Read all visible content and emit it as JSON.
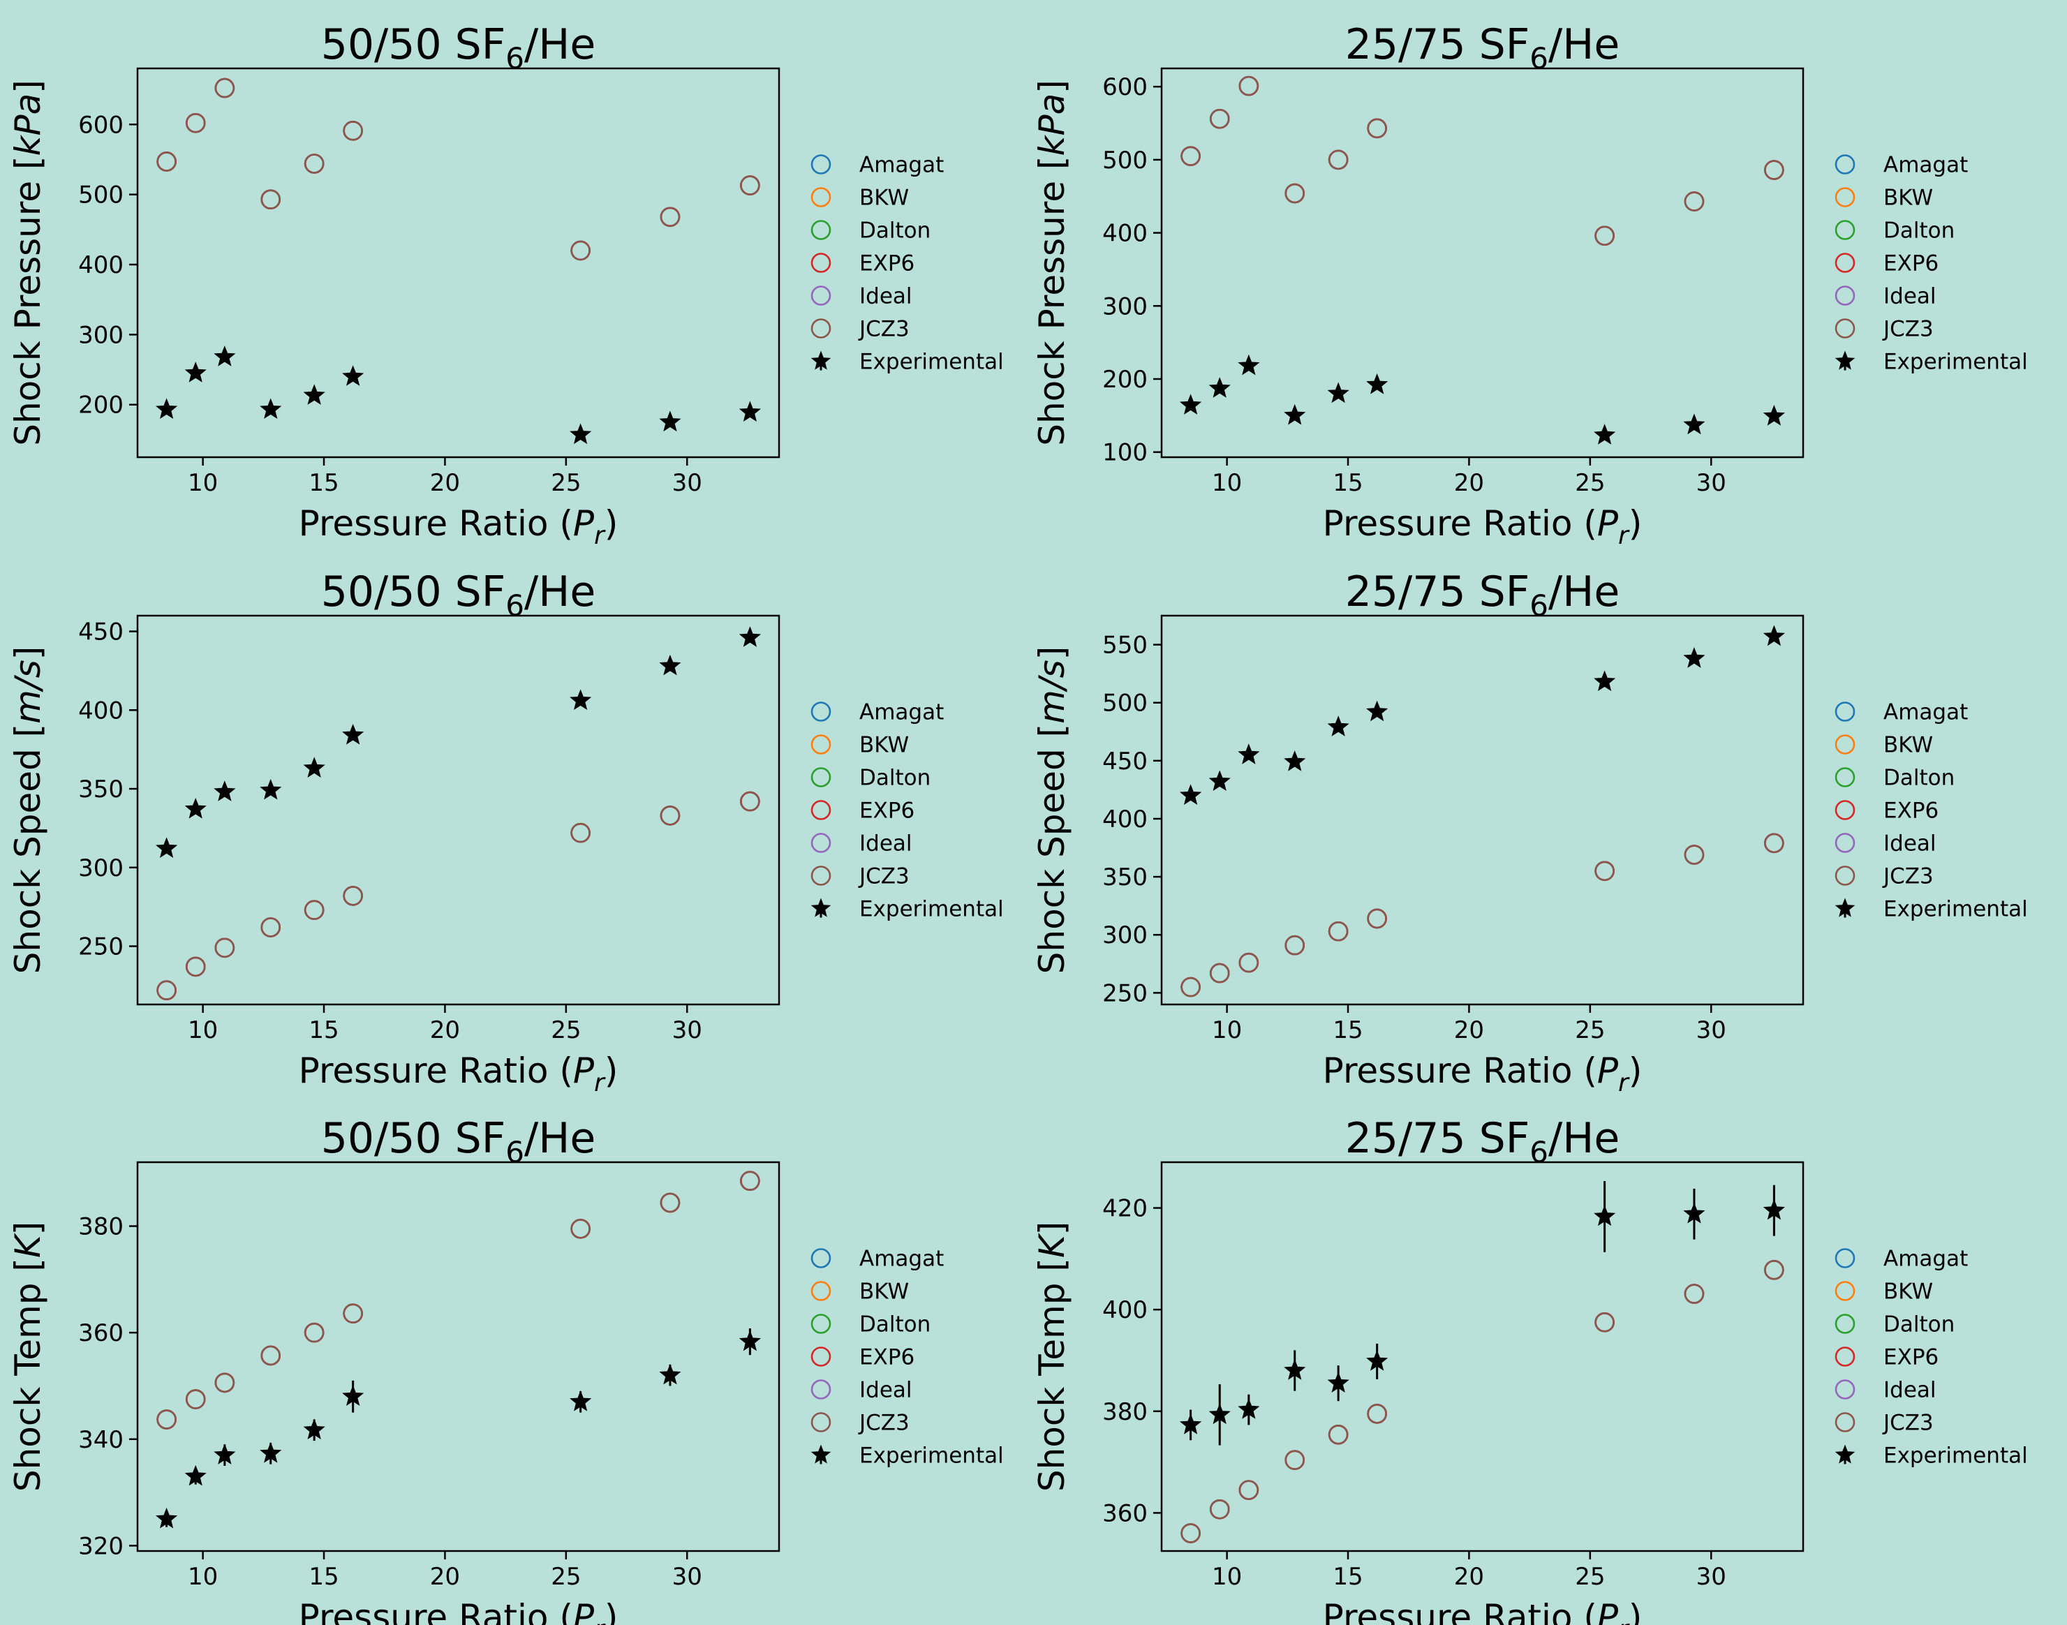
{
  "figure": {
    "background": "#b9e1d9"
  },
  "legend_colors": {
    "Amagat": "#1f77b4",
    "BKW": "#ff7f0e",
    "Dalton": "#2ca02c",
    "EXP6": "#d62728",
    "Ideal": "#9467bd",
    "JCZ3": "#8c564b",
    "Experimental": "#000000"
  },
  "chart_data": [
    {
      "type": "scatter",
      "title": "50/50 SF6/He",
      "title_main": "50/50 SF",
      "title_sub": "6",
      "title_tail": "/He",
      "xlabel": "Pressure Ratio (Pr)",
      "xlabel_main": "Pressure Ratio (",
      "xlabel_var": "P",
      "xlabel_sub": "r",
      "xlabel_tail": ")",
      "ylabel": "Shock Pressure [kPa]",
      "ylabel_main": "Shock Pressure [",
      "ylabel_unit": "kPa",
      "ylabel_tail": "]",
      "xlim": [
        7.3,
        33.8
      ],
      "ylim": [
        125,
        680
      ],
      "xticks": [
        10,
        15,
        20,
        25,
        30
      ],
      "yticks": [
        200,
        300,
        400,
        500,
        600
      ],
      "legend": [
        "Amagat",
        "BKW",
        "Dalton",
        "EXP6",
        "Ideal",
        "JCZ3",
        "Experimental"
      ],
      "legend_position": "outside-right",
      "x": [
        8.5,
        9.7,
        10.9,
        12.8,
        14.6,
        16.2,
        25.6,
        29.3,
        32.6
      ],
      "series": [
        {
          "name": "Amagat",
          "values": [
            547,
            602,
            652,
            493,
            544,
            591,
            420,
            468,
            513
          ]
        },
        {
          "name": "BKW",
          "values": [
            547,
            602,
            652,
            493,
            544,
            591,
            420,
            468,
            513
          ]
        },
        {
          "name": "Dalton",
          "values": [
            547,
            602,
            652,
            493,
            544,
            591,
            420,
            468,
            513
          ]
        },
        {
          "name": "EXP6",
          "values": [
            547,
            602,
            652,
            493,
            544,
            591,
            420,
            468,
            513
          ]
        },
        {
          "name": "Ideal",
          "values": [
            547,
            602,
            652,
            493,
            544,
            591,
            420,
            468,
            513
          ]
        },
        {
          "name": "JCZ3",
          "values": [
            547,
            602,
            652,
            493,
            544,
            591,
            420,
            468,
            513
          ]
        },
        {
          "name": "Experimental",
          "values": [
            193,
            245,
            268,
            193,
            213,
            240,
            157,
            175,
            189
          ],
          "err": [
            0,
            0,
            0,
            0,
            0,
            0,
            0,
            0,
            0
          ]
        }
      ]
    },
    {
      "type": "scatter",
      "title": "25/75 SF6/He",
      "title_main": "25/75 SF",
      "title_sub": "6",
      "title_tail": "/He",
      "xlabel": "Pressure Ratio (Pr)",
      "xlabel_main": "Pressure Ratio (",
      "xlabel_var": "P",
      "xlabel_sub": "r",
      "xlabel_tail": ")",
      "ylabel": "Shock Pressure [kPa]",
      "ylabel_main": "Shock Pressure [",
      "ylabel_unit": "kPa",
      "ylabel_tail": "]",
      "xlim": [
        7.3,
        33.8
      ],
      "ylim": [
        93,
        625
      ],
      "xticks": [
        10,
        15,
        20,
        25,
        30
      ],
      "yticks": [
        100,
        200,
        300,
        400,
        500,
        600
      ],
      "legend": [
        "Amagat",
        "BKW",
        "Dalton",
        "EXP6",
        "Ideal",
        "JCZ3",
        "Experimental"
      ],
      "legend_position": "outside-right",
      "x": [
        8.5,
        9.7,
        10.9,
        12.8,
        14.6,
        16.2,
        25.6,
        29.3,
        32.6
      ],
      "series": [
        {
          "name": "Amagat",
          "values": [
            505,
            556,
            601,
            454,
            500,
            543,
            396,
            443,
            486
          ]
        },
        {
          "name": "BKW",
          "values": [
            505,
            556,
            601,
            454,
            500,
            543,
            396,
            443,
            486
          ]
        },
        {
          "name": "Dalton",
          "values": [
            505,
            556,
            601,
            454,
            500,
            543,
            396,
            443,
            486
          ]
        },
        {
          "name": "EXP6",
          "values": [
            505,
            556,
            601,
            454,
            500,
            543,
            396,
            443,
            486
          ]
        },
        {
          "name": "Ideal",
          "values": [
            505,
            556,
            601,
            454,
            500,
            543,
            396,
            443,
            486
          ]
        },
        {
          "name": "JCZ3",
          "values": [
            505,
            556,
            601,
            454,
            500,
            543,
            396,
            443,
            486
          ]
        },
        {
          "name": "Experimental",
          "values": [
            164,
            187,
            218,
            150,
            180,
            192,
            123,
            137,
            149
          ],
          "err": [
            0,
            0,
            0,
            0,
            0,
            0,
            0,
            0,
            0
          ]
        }
      ]
    },
    {
      "type": "scatter",
      "title": "50/50 SF6/He",
      "title_main": "50/50 SF",
      "title_sub": "6",
      "title_tail": "/He",
      "xlabel": "Pressure Ratio (Pr)",
      "xlabel_main": "Pressure Ratio (",
      "xlabel_var": "P",
      "xlabel_sub": "r",
      "xlabel_tail": ")",
      "ylabel": "Shock Speed [m/s]",
      "ylabel_main": "Shock Speed [",
      "ylabel_unit": "m/s",
      "ylabel_tail": "]",
      "xlim": [
        7.3,
        33.8
      ],
      "ylim": [
        213,
        460
      ],
      "xticks": [
        10,
        15,
        20,
        25,
        30
      ],
      "yticks": [
        250,
        300,
        350,
        400,
        450
      ],
      "legend": [
        "Amagat",
        "BKW",
        "Dalton",
        "EXP6",
        "Ideal",
        "JCZ3",
        "Experimental"
      ],
      "legend_position": "outside-right",
      "x": [
        8.5,
        9.7,
        10.9,
        12.8,
        14.6,
        16.2,
        25.6,
        29.3,
        32.6
      ],
      "series": [
        {
          "name": "Amagat",
          "values": [
            222,
            237,
            249,
            262,
            273,
            282,
            322,
            333,
            342
          ]
        },
        {
          "name": "BKW",
          "values": [
            222,
            237,
            249,
            262,
            273,
            282,
            322,
            333,
            342
          ]
        },
        {
          "name": "Dalton",
          "values": [
            222,
            237,
            249,
            262,
            273,
            282,
            322,
            333,
            342
          ]
        },
        {
          "name": "EXP6",
          "values": [
            222,
            237,
            249,
            262,
            273,
            282,
            322,
            333,
            342
          ]
        },
        {
          "name": "Ideal",
          "values": [
            222,
            237,
            249,
            262,
            273,
            282,
            322,
            333,
            342
          ]
        },
        {
          "name": "JCZ3",
          "values": [
            222,
            237,
            249,
            262,
            273,
            282,
            322,
            333,
            342
          ]
        },
        {
          "name": "Experimental",
          "values": [
            312,
            337,
            348,
            349,
            363,
            384,
            406,
            428,
            446
          ],
          "err": [
            0,
            0,
            0,
            0,
            0,
            0,
            0,
            0,
            0
          ]
        }
      ]
    },
    {
      "type": "scatter",
      "title": "25/75 SF6/He",
      "title_main": "25/75 SF",
      "title_sub": "6",
      "title_tail": "/He",
      "xlabel": "Pressure Ratio (Pr)",
      "xlabel_main": "Pressure Ratio (",
      "xlabel_var": "P",
      "xlabel_sub": "r",
      "xlabel_tail": ")",
      "ylabel": "Shock Speed [m/s]",
      "ylabel_main": "Shock Speed [",
      "ylabel_unit": "m/s",
      "ylabel_tail": "]",
      "xlim": [
        7.3,
        33.8
      ],
      "ylim": [
        240,
        575
      ],
      "xticks": [
        10,
        15,
        20,
        25,
        30
      ],
      "yticks": [
        250,
        300,
        350,
        400,
        450,
        500,
        550
      ],
      "legend": [
        "Amagat",
        "BKW",
        "Dalton",
        "EXP6",
        "Ideal",
        "JCZ3",
        "Experimental"
      ],
      "legend_position": "outside-right",
      "x": [
        8.5,
        9.7,
        10.9,
        12.8,
        14.6,
        16.2,
        25.6,
        29.3,
        32.6
      ],
      "series": [
        {
          "name": "Amagat",
          "values": [
            255,
            267,
            276,
            291,
            303,
            314,
            355,
            369,
            379
          ]
        },
        {
          "name": "BKW",
          "values": [
            255,
            267,
            276,
            291,
            303,
            314,
            355,
            369,
            379
          ]
        },
        {
          "name": "Dalton",
          "values": [
            255,
            267,
            276,
            291,
            303,
            314,
            355,
            369,
            379
          ]
        },
        {
          "name": "EXP6",
          "values": [
            255,
            267,
            276,
            291,
            303,
            314,
            355,
            369,
            379
          ]
        },
        {
          "name": "Ideal",
          "values": [
            255,
            267,
            276,
            291,
            303,
            314,
            355,
            369,
            379
          ]
        },
        {
          "name": "JCZ3",
          "values": [
            255,
            267,
            276,
            291,
            303,
            314,
            355,
            369,
            379
          ]
        },
        {
          "name": "Experimental",
          "values": [
            420,
            432,
            455,
            449,
            479,
            492,
            518,
            538,
            557
          ],
          "err": [
            0,
            0,
            0,
            0,
            0,
            0,
            0,
            0,
            0
          ]
        }
      ]
    },
    {
      "type": "scatter",
      "title": "50/50 SF6/He",
      "title_main": "50/50 SF",
      "title_sub": "6",
      "title_tail": "/He",
      "xlabel": "Pressure Ratio (Pr)",
      "xlabel_main": "Pressure Ratio (",
      "xlabel_var": "P",
      "xlabel_sub": "r",
      "xlabel_tail": ")",
      "ylabel": "Shock Temp [K]",
      "ylabel_main": "Shock Temp [",
      "ylabel_unit": "K",
      "ylabel_tail": "]",
      "xlim": [
        7.3,
        33.8
      ],
      "ylim": [
        319,
        392
      ],
      "xticks": [
        10,
        15,
        20,
        25,
        30
      ],
      "yticks": [
        320,
        340,
        360,
        380
      ],
      "legend": [
        "Amagat",
        "BKW",
        "Dalton",
        "EXP6",
        "Ideal",
        "JCZ3",
        "Experimental"
      ],
      "legend_position": "outside-right",
      "x": [
        8.5,
        9.7,
        10.9,
        12.8,
        14.6,
        16.2,
        25.6,
        29.3,
        32.6
      ],
      "series": [
        {
          "name": "Amagat",
          "values": [
            343.7,
            347.5,
            350.6,
            355.7,
            360.0,
            363.6,
            379.5,
            384.4,
            388.5
          ]
        },
        {
          "name": "BKW",
          "values": [
            343.7,
            347.5,
            350.6,
            355.7,
            360.0,
            363.6,
            379.5,
            384.4,
            388.5
          ]
        },
        {
          "name": "Dalton",
          "values": [
            343.7,
            347.5,
            350.6,
            355.7,
            360.0,
            363.6,
            379.5,
            384.4,
            388.5
          ]
        },
        {
          "name": "EXP6",
          "values": [
            343.7,
            347.5,
            350.6,
            355.7,
            360.0,
            363.6,
            379.5,
            384.4,
            388.5
          ]
        },
        {
          "name": "Ideal",
          "values": [
            343.7,
            347.5,
            350.6,
            355.7,
            360.0,
            363.6,
            379.5,
            384.4,
            388.5
          ]
        },
        {
          "name": "JCZ3",
          "values": [
            343.7,
            347.5,
            350.6,
            355.7,
            360.0,
            363.6,
            379.5,
            384.4,
            388.5
          ]
        },
        {
          "name": "Experimental",
          "values": [
            325.0,
            333.0,
            337.0,
            337.3,
            341.7,
            348.0,
            347.0,
            352.0,
            358.3
          ],
          "err": [
            1.5,
            1.5,
            2.0,
            2.0,
            2.0,
            3.0,
            2.0,
            2.0,
            2.5
          ]
        }
      ]
    },
    {
      "type": "scatter",
      "title": "25/75 SF6/He",
      "title_main": "25/75 SF",
      "title_sub": "6",
      "title_tail": "/He",
      "xlabel": "Pressure Ratio (Pr)",
      "xlabel_main": "Pressure Ratio (",
      "xlabel_var": "P",
      "xlabel_sub": "r",
      "xlabel_tail": ")",
      "ylabel": "Shock Temp [K]",
      "ylabel_main": "Shock Temp [",
      "ylabel_unit": "K",
      "ylabel_tail": "]",
      "xlim": [
        7.3,
        33.8
      ],
      "ylim": [
        352.5,
        429
      ],
      "xticks": [
        10,
        15,
        20,
        25,
        30
      ],
      "yticks": [
        360,
        380,
        400,
        420
      ],
      "legend": [
        "Amagat",
        "BKW",
        "Dalton",
        "EXP6",
        "Ideal",
        "JCZ3",
        "Experimental"
      ],
      "legend_position": "outside-right",
      "x": [
        8.5,
        9.7,
        10.9,
        12.8,
        14.6,
        16.2,
        25.6,
        29.3,
        32.6
      ],
      "series": [
        {
          "name": "Amagat",
          "values": [
            356.0,
            360.7,
            364.5,
            370.4,
            375.4,
            379.5,
            397.5,
            403.1,
            407.8
          ]
        },
        {
          "name": "BKW",
          "values": [
            356.0,
            360.7,
            364.5,
            370.4,
            375.4,
            379.5,
            397.5,
            403.1,
            407.8
          ]
        },
        {
          "name": "Dalton",
          "values": [
            356.0,
            360.7,
            364.5,
            370.4,
            375.4,
            379.5,
            397.5,
            403.1,
            407.8
          ]
        },
        {
          "name": "EXP6",
          "values": [
            356.0,
            360.7,
            364.5,
            370.4,
            375.4,
            379.5,
            397.5,
            403.1,
            407.8
          ]
        },
        {
          "name": "Ideal",
          "values": [
            356.0,
            360.7,
            364.5,
            370.4,
            375.4,
            379.5,
            397.5,
            403.1,
            407.8
          ]
        },
        {
          "name": "JCZ3",
          "values": [
            356.0,
            360.7,
            364.5,
            370.4,
            375.4,
            379.5,
            397.5,
            403.1,
            407.8
          ]
        },
        {
          "name": "Experimental",
          "values": [
            377.3,
            379.3,
            380.3,
            388.0,
            385.5,
            389.8,
            418.3,
            418.8,
            419.5
          ],
          "err": [
            3.0,
            6.0,
            3.0,
            4.0,
            3.5,
            3.5,
            7.0,
            5.0,
            5.0
          ]
        }
      ]
    }
  ]
}
